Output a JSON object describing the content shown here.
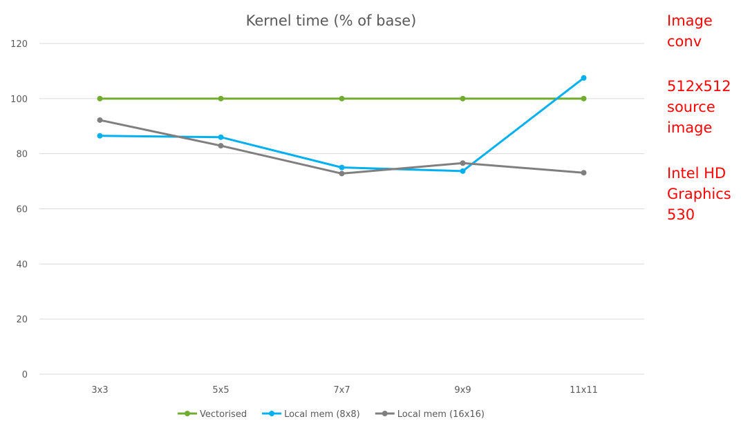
{
  "notes": {
    "block1": [
      "Image",
      "conv"
    ],
    "block2": [
      "512x512",
      "source",
      "image"
    ],
    "block3": [
      "Intel HD",
      "Graphics",
      "530"
    ]
  },
  "colors": {
    "Vectorised": "#70ad2f",
    "Local mem (8x8)": "#00b0f0",
    "Local mem (16x16)": "#7f7f7f",
    "notes": "#ff0000"
  },
  "chart_data": {
    "type": "line",
    "title": "Kernel time (% of base)",
    "xlabel": "",
    "ylabel": "",
    "categories": [
      "3x3",
      "5x5",
      "7x7",
      "9x9",
      "11x11"
    ],
    "ylim": [
      0,
      120
    ],
    "yticks": [
      0,
      20,
      40,
      60,
      80,
      100,
      120
    ],
    "grid": true,
    "legend": "bottom",
    "series": [
      {
        "name": "Vectorised",
        "values": [
          100,
          100,
          100,
          100,
          100
        ]
      },
      {
        "name": "Local mem (8x8)",
        "values": [
          86.5,
          86,
          75,
          73.7,
          107.5
        ]
      },
      {
        "name": "Local mem (16x16)",
        "values": [
          92.2,
          82.9,
          72.8,
          76.6,
          73.1
        ]
      }
    ]
  }
}
